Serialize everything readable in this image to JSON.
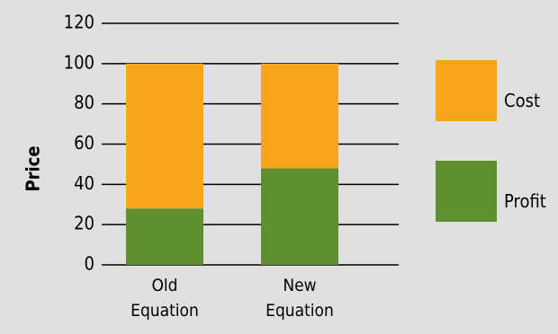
{
  "chart_data": {
    "type": "bar",
    "stacked": true,
    "categories": [
      [
        "Old",
        "Equation"
      ],
      [
        "New",
        "Equation"
      ]
    ],
    "series": [
      {
        "name": "Profit",
        "values": [
          28,
          48
        ],
        "color": "#5f8f2f"
      },
      {
        "name": "Cost",
        "values": [
          72,
          52
        ],
        "color": "#f9a51b"
      }
    ],
    "title": "",
    "xlabel": "",
    "ylabel": "Price",
    "ylim": [
      0,
      120
    ],
    "yticks": [
      0,
      20,
      40,
      60,
      80,
      100,
      120
    ],
    "grid": true,
    "legend_placement": "right",
    "legend": [
      {
        "label": "Cost",
        "color": "#f9a51b"
      },
      {
        "label": "Profit",
        "color": "#5f8f2f"
      }
    ]
  }
}
